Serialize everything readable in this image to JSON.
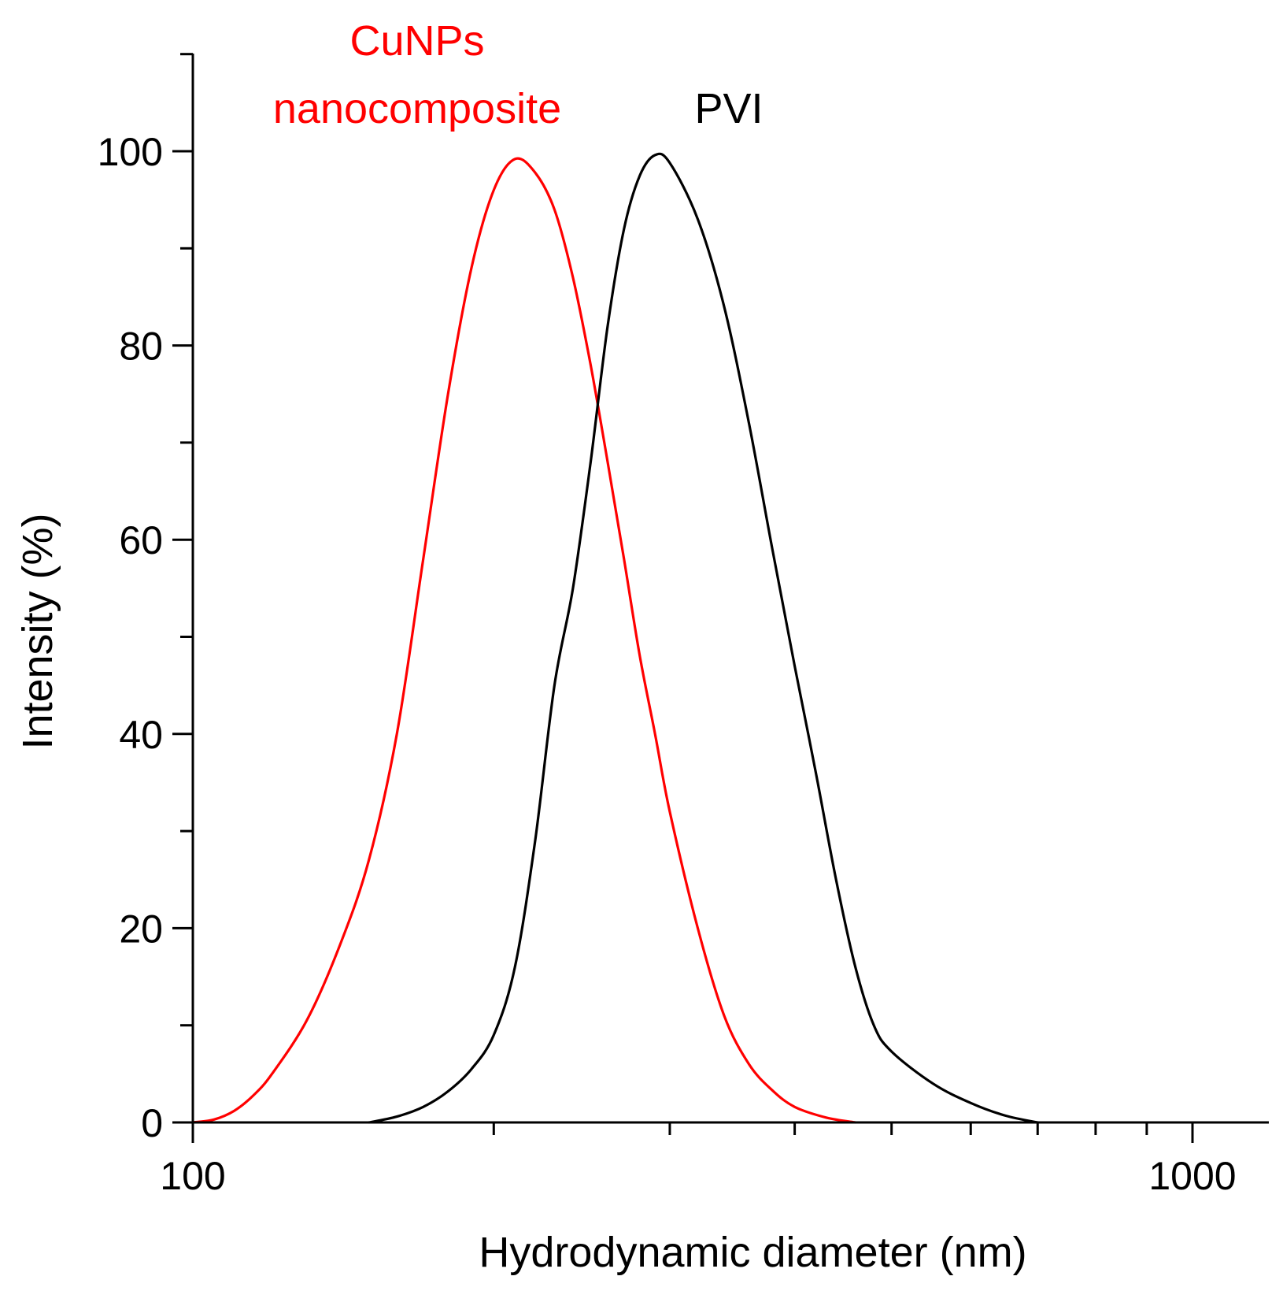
{
  "chart_data": {
    "type": "line",
    "xlabel": "Hydrodynamic diameter (nm)",
    "ylabel": "Intensity (%)",
    "x_scale": "log",
    "xlim": [
      100,
      1150
    ],
    "ylim": [
      0,
      110
    ],
    "x_tick_labels": [
      {
        "value": 100,
        "label": "100"
      },
      {
        "value": 1000,
        "label": "1000"
      }
    ],
    "y_tick_labels": [
      {
        "value": 0,
        "label": "0"
      },
      {
        "value": 20,
        "label": "20"
      },
      {
        "value": 40,
        "label": "40"
      },
      {
        "value": 60,
        "label": "60"
      },
      {
        "value": 80,
        "label": "80"
      },
      {
        "value": 100,
        "label": "100"
      }
    ],
    "grid": false,
    "series": [
      {
        "name": "CuNPs nanocomposite",
        "label_lines": [
          "CuNPs",
          "nanocomposite"
        ],
        "color": "#ff0000",
        "points": [
          [
            100,
            0
          ],
          [
            105,
            0.3
          ],
          [
            110,
            1.2
          ],
          [
            115,
            2.8
          ],
          [
            120,
            5
          ],
          [
            130,
            10.5
          ],
          [
            140,
            18
          ],
          [
            150,
            27
          ],
          [
            160,
            40
          ],
          [
            170,
            58
          ],
          [
            180,
            75
          ],
          [
            190,
            88
          ],
          [
            200,
            96
          ],
          [
            210,
            99.2
          ],
          [
            220,
            97.8
          ],
          [
            230,
            94
          ],
          [
            240,
            87
          ],
          [
            250,
            78
          ],
          [
            260,
            68
          ],
          [
            270,
            58
          ],
          [
            280,
            48
          ],
          [
            290,
            40
          ],
          [
            300,
            32
          ],
          [
            320,
            20
          ],
          [
            340,
            11
          ],
          [
            360,
            6
          ],
          [
            380,
            3.3
          ],
          [
            400,
            1.6
          ],
          [
            430,
            0.5
          ],
          [
            460,
            0
          ]
        ]
      },
      {
        "name": "PVI",
        "label_lines": [
          "PVI"
        ],
        "color": "#000000",
        "points": [
          [
            150,
            0
          ],
          [
            160,
            0.6
          ],
          [
            170,
            1.6
          ],
          [
            180,
            3.2
          ],
          [
            190,
            5.5
          ],
          [
            200,
            9
          ],
          [
            210,
            16
          ],
          [
            220,
            29
          ],
          [
            230,
            45
          ],
          [
            240,
            55
          ],
          [
            250,
            68
          ],
          [
            260,
            82
          ],
          [
            270,
            92
          ],
          [
            280,
            97.5
          ],
          [
            290,
            99.6
          ],
          [
            300,
            98.8
          ],
          [
            320,
            93
          ],
          [
            340,
            84
          ],
          [
            360,
            72
          ],
          [
            380,
            59
          ],
          [
            400,
            47
          ],
          [
            420,
            36
          ],
          [
            440,
            25
          ],
          [
            460,
            16
          ],
          [
            480,
            10
          ],
          [
            500,
            7.3
          ],
          [
            550,
            4
          ],
          [
            600,
            2
          ],
          [
            650,
            0.7
          ],
          [
            700,
            0
          ]
        ]
      }
    ]
  }
}
